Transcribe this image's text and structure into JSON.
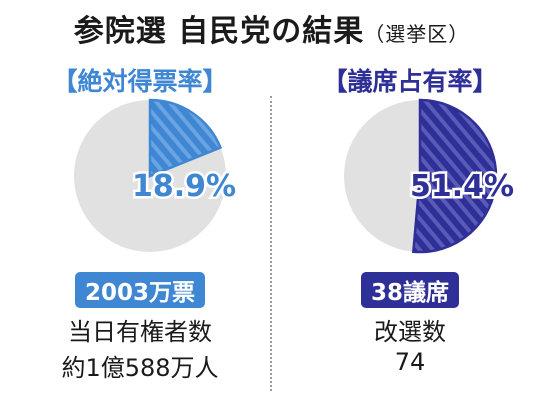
{
  "title": {
    "main": "参院選 自民党の結果",
    "sub": "（選挙区）"
  },
  "colors": {
    "left_accent": "#3f86d3",
    "left_stripe": "#6aa4e2",
    "right_accent": "#2f2f98",
    "right_stripe": "#5a5ab8",
    "remainder": "#e1e1e1"
  },
  "left": {
    "heading": "【絶対得票率】",
    "badge": "2003万票",
    "caption_line1": "当日有権者数",
    "caption_line2": "約1億588万人"
  },
  "right": {
    "heading": "【議席占有率】",
    "badge": "38議席",
    "caption_line1": "改選数",
    "caption_line2": "74"
  },
  "chart_data": [
    {
      "type": "pie",
      "title": "【絶対得票率】",
      "slices": [
        {
          "value": 18.9,
          "label": "18.9%"
        },
        {
          "value": 81.1,
          "label": ""
        }
      ]
    },
    {
      "type": "pie",
      "title": "【議席占有率】",
      "slices": [
        {
          "value": 51.4,
          "label": "51.4%"
        },
        {
          "value": 48.6,
          "label": ""
        }
      ]
    }
  ]
}
